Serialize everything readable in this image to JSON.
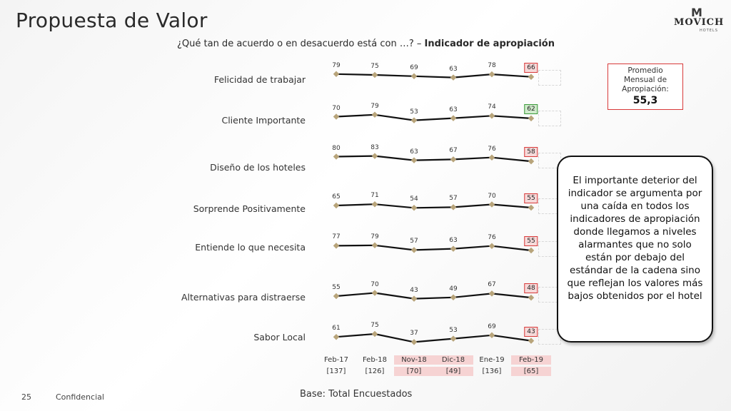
{
  "title": "Propuesta de Valor",
  "logo": {
    "mark": "M",
    "name": "MOVICH",
    "tag": "HOTELS"
  },
  "subtitle": {
    "question": "¿Qué tan de acuerdo o en desacuerdo está con …? –",
    "indicator": "Indicador de apropiación"
  },
  "promedio": {
    "label": "Promedio Mensual de Apropiación:",
    "value": "55,3"
  },
  "callout": "El importante deterior del indicador se argumenta por una caída en todos los indicadores de apropiación donde llegamos a niveles alarmantes que no solo están por debajo del estándar de la cadena sino que reflejan los valores más bajos obtenidos por el hotel",
  "footer": {
    "base": "Base: Total Encuestados",
    "page": "25",
    "confidential": "Confidencial"
  },
  "colors": {
    "line": "#111111",
    "marker": "#b8a47a",
    "highlight_border": "#d83a3a",
    "highlight_fill": "#f6d9d9",
    "green_border": "#3a9a3a",
    "green_fill": "#cfeacb",
    "period_highlight": "#f6d3d3"
  },
  "chart_data": {
    "type": "line",
    "x": [
      "Feb-17",
      "Feb-18",
      "Nov-18",
      "Dic-18",
      "Ene-19",
      "Feb-19"
    ],
    "bases": [
      "[137]",
      "[126]",
      "[70]",
      "[49]",
      "[136]",
      "[65]"
    ],
    "highlighted_periods": [
      "Nov-18",
      "Dic-18",
      "Feb-19"
    ],
    "series": [
      {
        "name": "Felicidad de trabajar",
        "values": [
          79,
          75,
          69,
          63,
          78,
          66
        ],
        "last_status": "red"
      },
      {
        "name": "Cliente Importante",
        "values": [
          70,
          79,
          53,
          63,
          74,
          62
        ],
        "last_status": "green"
      },
      {
        "name": "Diseño de los hoteles",
        "values": [
          80,
          83,
          63,
          67,
          76,
          58
        ],
        "last_status": "red"
      },
      {
        "name": "Sorprende Positivamente",
        "values": [
          65,
          71,
          54,
          57,
          70,
          55
        ],
        "last_status": "red"
      },
      {
        "name": "Entiende lo que necesita",
        "values": [
          77,
          79,
          57,
          63,
          76,
          55
        ],
        "last_status": "red"
      },
      {
        "name": "Alternativas para distraerse",
        "values": [
          55,
          70,
          43,
          49,
          67,
          48
        ],
        "last_status": "red"
      },
      {
        "name": "Sabor Local",
        "values": [
          61,
          75,
          37,
          53,
          69,
          43
        ],
        "last_status": "red"
      }
    ]
  }
}
